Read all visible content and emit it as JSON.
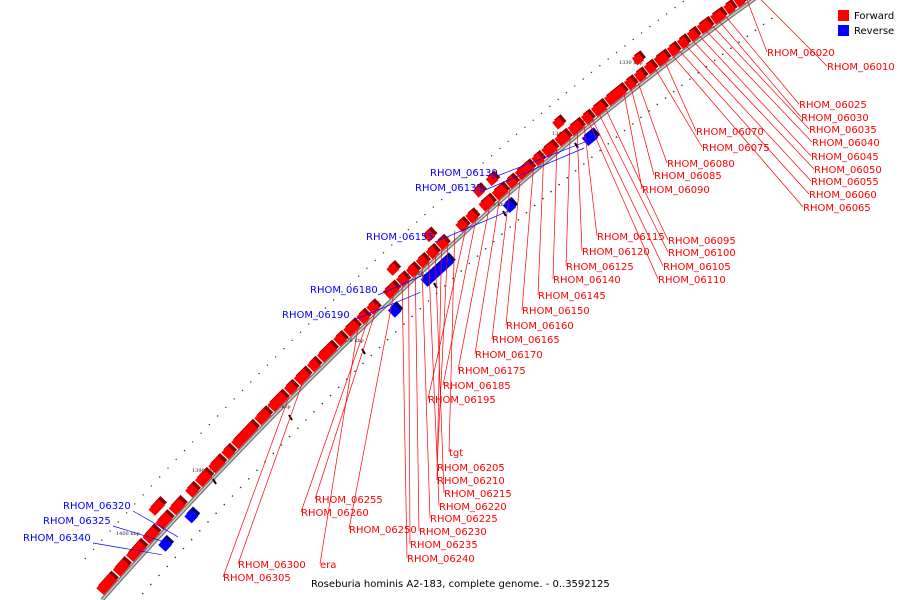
{
  "caption": "Roseburia hominis A2-183, complete genome. - 0..3592125",
  "legend": [
    {
      "label": "Forward",
      "color": "#ff0000"
    },
    {
      "label": "Reverse",
      "color": "#0000ff"
    }
  ],
  "colors": {
    "forward": "#ff0000",
    "reverse": "#0000ff",
    "axis": "#7a7a7a",
    "leader": "#ff0000",
    "leader_reverse": "#0000ff"
  },
  "tick_marks": [
    "1330 kbp",
    "1340 kbp",
    "1350 kbp",
    "1360 kbp",
    "1370 kbp",
    "1380 kbp",
    "1390 kbp",
    "1400 kbp"
  ],
  "forward_labels": [
    "RHOM_06020",
    "RHOM_06010",
    "RHOM_06025",
    "RHOM_06030",
    "RHOM_06035",
    "RHOM_06040",
    "RHOM_06045",
    "RHOM_06050",
    "RHOM_06055",
    "RHOM_06060",
    "RHOM_06065",
    "RHOM_06070",
    "RHOM_06075",
    "RHOM_06080",
    "RHOM_06085",
    "RHOM_06090",
    "RHOM_06115",
    "RHOM_06095",
    "RHOM_06100",
    "RHOM_06120",
    "RHOM_06105",
    "RHOM_06125",
    "RHOM_06110",
    "RHOM_06140",
    "RHOM_06145",
    "RHOM_06150",
    "RHOM_06160",
    "RHOM_06165",
    "RHOM_06170",
    "RHOM_06175",
    "RHOM_06185",
    "RHOM_06195",
    "tgt",
    "RHOM_06205",
    "RHOM_06210",
    "RHOM_06215",
    "RHOM_06220",
    "RHOM_06255",
    "RHOM_06225",
    "RHOM_06260",
    "RHOM_06250",
    "RHOM_06230",
    "RHOM_06235",
    "RHOM_06240",
    "RHOM_06300",
    "era",
    "RHOM_06305"
  ],
  "reverse_labels": [
    "RHOM_06130",
    "RHOM_06135",
    "RHOM_06155",
    "RHOM_06180",
    "RHOM_06190",
    "RHOM_06320",
    "RHOM_06325",
    "RHOM_06340"
  ]
}
